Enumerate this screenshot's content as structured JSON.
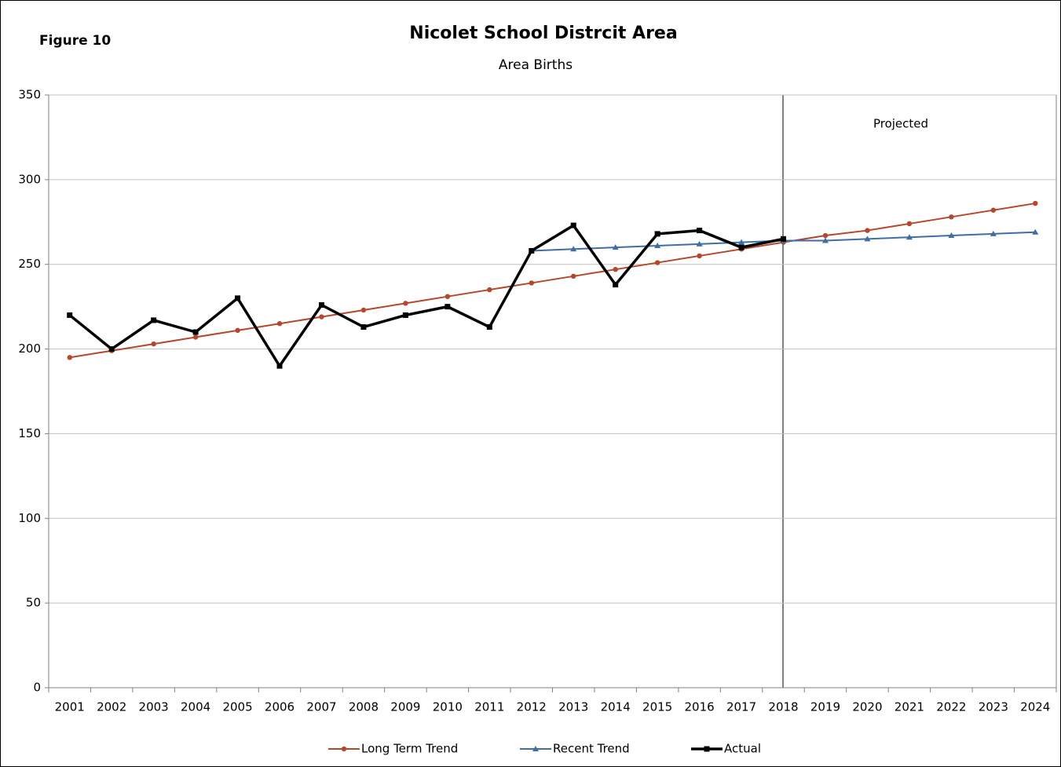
{
  "chart_data": {
    "type": "line",
    "figure_label": "Figure 10",
    "title": "Nicolet School Distrcit Area",
    "subtitle": "Area Births",
    "annotation": "Projected",
    "categories": [
      "2001",
      "2002",
      "2003",
      "2004",
      "2005",
      "2006",
      "2007",
      "2008",
      "2009",
      "2010",
      "2011",
      "2012",
      "2013",
      "2014",
      "2015",
      "2016",
      "2017",
      "2018",
      "2019",
      "2020",
      "2021",
      "2022",
      "2023",
      "2024"
    ],
    "series": [
      {
        "name": "Long Term Trend",
        "color": "#b5472a",
        "marker": "circle",
        "values": [
          195,
          199,
          203,
          207,
          211,
          215,
          219,
          223,
          227,
          231,
          235,
          239,
          243,
          247,
          251,
          255,
          259,
          263,
          267,
          270,
          274,
          278,
          282,
          286
        ]
      },
      {
        "name": "Recent Trend",
        "color": "#3e6ea3",
        "marker": "triangle",
        "values": [
          null,
          null,
          null,
          null,
          null,
          null,
          null,
          null,
          null,
          null,
          null,
          258,
          259,
          260,
          261,
          262,
          263,
          264,
          264,
          265,
          266,
          267,
          268,
          269
        ]
      },
      {
        "name": "Actual",
        "color": "#000000",
        "marker": "square",
        "values": [
          220,
          200,
          217,
          210,
          230,
          190,
          226,
          213,
          220,
          225,
          213,
          258,
          273,
          238,
          268,
          270,
          260,
          265,
          null,
          null,
          null,
          null,
          null,
          null
        ]
      }
    ],
    "ylim": [
      0,
      350
    ],
    "yticks": [
      0,
      50,
      100,
      150,
      200,
      250,
      300,
      350
    ],
    "grid": true,
    "legend": "bottom"
  }
}
